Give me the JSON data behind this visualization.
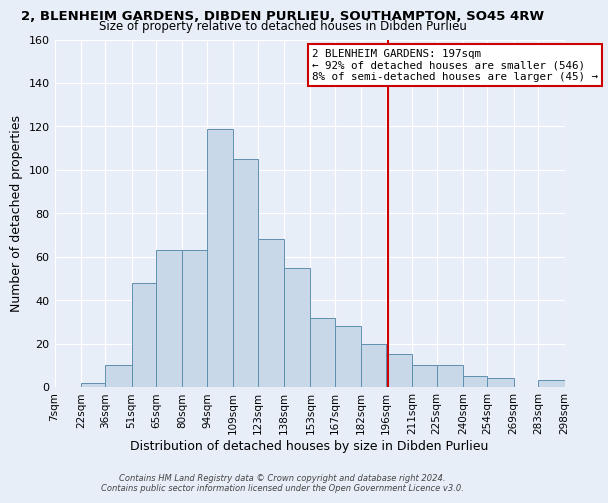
{
  "title": "2, BLENHEIM GARDENS, DIBDEN PURLIEU, SOUTHAMPTON, SO45 4RW",
  "subtitle": "Size of property relative to detached houses in Dibden Purlieu",
  "xlabel": "Distribution of detached houses by size in Dibden Purlieu",
  "ylabel": "Number of detached properties",
  "bin_labels": [
    "7sqm",
    "22sqm",
    "36sqm",
    "51sqm",
    "65sqm",
    "80sqm",
    "94sqm",
    "109sqm",
    "123sqm",
    "138sqm",
    "153sqm",
    "167sqm",
    "182sqm",
    "196sqm",
    "211sqm",
    "225sqm",
    "240sqm",
    "254sqm",
    "269sqm",
    "283sqm",
    "298sqm"
  ],
  "bin_edges": [
    7,
    22,
    36,
    51,
    65,
    80,
    94,
    109,
    123,
    138,
    153,
    167,
    182,
    196,
    211,
    225,
    240,
    254,
    269,
    283,
    298
  ],
  "bar_heights": [
    0,
    2,
    10,
    48,
    63,
    63,
    119,
    105,
    68,
    55,
    32,
    28,
    20,
    15,
    10,
    10,
    5,
    4,
    0,
    3
  ],
  "bar_color": "#c8d8e8",
  "bar_edge_color": "#6090b0",
  "property_line_x": 197,
  "ylim": [
    0,
    160
  ],
  "yticks": [
    0,
    20,
    40,
    60,
    80,
    100,
    120,
    140,
    160
  ],
  "annotation_title": "2 BLENHEIM GARDENS: 197sqm",
  "annotation_line1": "← 92% of detached houses are smaller (546)",
  "annotation_line2": "8% of semi-detached houses are larger (45) →",
  "annotation_box_color": "#ffffff",
  "annotation_box_edge": "#cc0000",
  "vline_color": "#cc0000",
  "footer1": "Contains HM Land Registry data © Crown copyright and database right 2024.",
  "footer2": "Contains public sector information licensed under the Open Government Licence v3.0.",
  "background_color": "#e8eef8",
  "plot_background_color": "#e8eef8"
}
